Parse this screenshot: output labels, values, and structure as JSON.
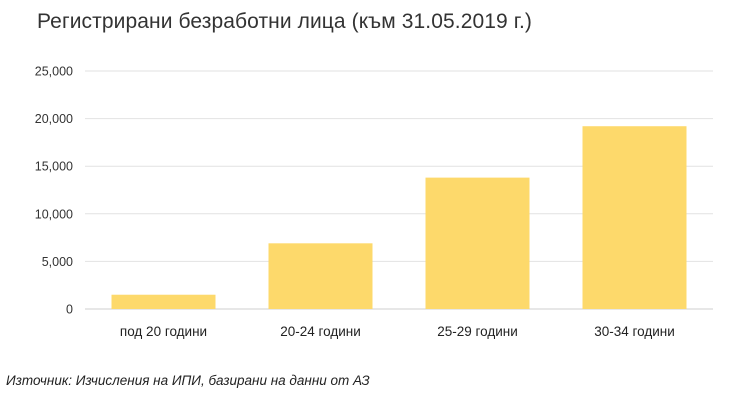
{
  "chart_data": {
    "type": "bar",
    "title": "Регистрирани безработни лица (към 31.05.2019 г.)",
    "categories": [
      "под 20 години",
      "20-24 години",
      "25-29 години",
      "30-34 години"
    ],
    "values": [
      1500,
      6900,
      13800,
      19200
    ],
    "ylim": [
      0,
      25000
    ],
    "yticks": [
      0,
      5000,
      10000,
      15000,
      20000,
      25000
    ],
    "ytick_labels": [
      "0",
      "5,000",
      "10,000",
      "15,000",
      "20,000",
      "25,000"
    ],
    "xlabel": "",
    "ylabel": "",
    "grid": true,
    "bar_color": "#FDD96B"
  },
  "source_text": "Източник: Изчисления на ИПИ, базирани на данни от АЗ"
}
